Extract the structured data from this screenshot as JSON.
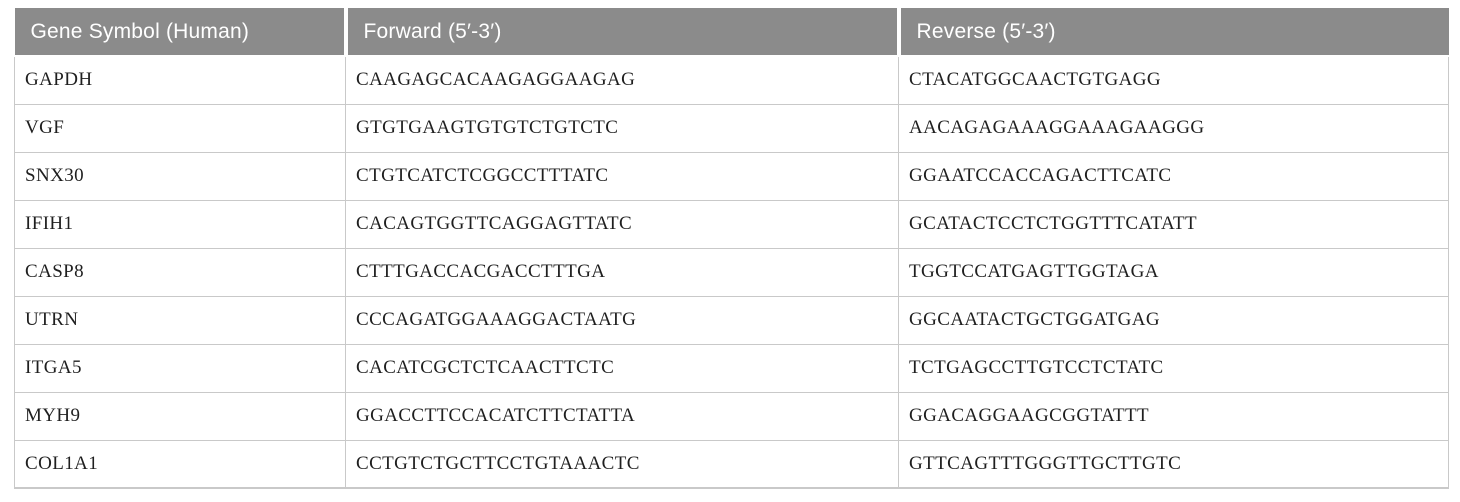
{
  "table": {
    "columns": [
      {
        "label": "Gene Symbol (Human)"
      },
      {
        "label": "Forward (5′-3′)"
      },
      {
        "label": "Reverse (5′-3′)"
      }
    ],
    "rows": [
      {
        "gene": "GAPDH",
        "forward": "CAAGAGCACAAGAGGAAGAG",
        "reverse": "CTACATGGCAACTGTGAGG"
      },
      {
        "gene": "VGF",
        "forward": "GTGTGAAGTGTGTCTGTCTC",
        "reverse": "AACAGAGAAAGGAAAGAAGGG"
      },
      {
        "gene": "SNX30",
        "forward": "CTGTCATCTCGGCCTTTATC",
        "reverse": "GGAATCCACCAGACTTCATC"
      },
      {
        "gene": "IFIH1",
        "forward": "CACAGTGGTTCAGGAGTTATC",
        "reverse": "GCATACTCCTCTGGTTTCATATT"
      },
      {
        "gene": "CASP8",
        "forward": "CTTTGACCACGACCTTTGA",
        "reverse": "TGGTCCATGAGTTGGTAGA"
      },
      {
        "gene": "UTRN",
        "forward": "CCCAGATGGAAAGGACTAATG",
        "reverse": "GGCAATACTGCTGGATGAG"
      },
      {
        "gene": "ITGA5",
        "forward": "CACATCGCTCTCAACTTCTC",
        "reverse": "TCTGAGCCTTGTCCTCTATC"
      },
      {
        "gene": "MYH9",
        "forward": "GGACCTTCCACATCTTCTATTA",
        "reverse": "GGACAGGAAGCGGTATTT"
      },
      {
        "gene": "COL1A1",
        "forward": "CCTGTCTGCTTCCTGTAAACTC",
        "reverse": "GTTCAGTTTGGGTTGCTTGTC"
      }
    ]
  },
  "colors": {
    "header_bg": "#8b8b8b",
    "header_text": "#ffffff",
    "body_text": "#1f1f1f",
    "grid_line": "#c9c9c9"
  }
}
